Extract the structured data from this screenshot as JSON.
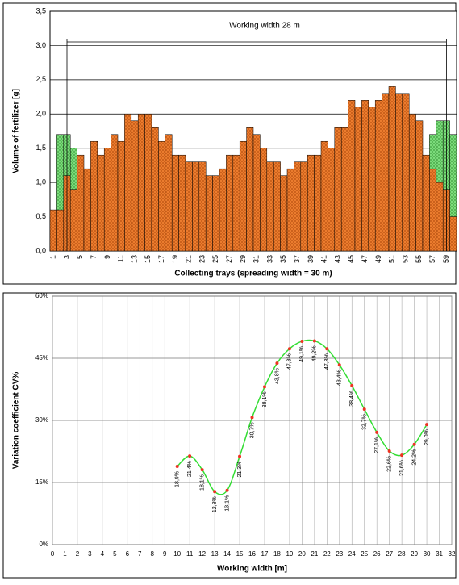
{
  "chart_data": [
    {
      "type": "bar",
      "ylabel": "Volume of fertilizer [g]",
      "xlabel": "Collecting trays (spreading width =  30 m)",
      "annotation": "Working width  28 m",
      "categories": [
        "1",
        null,
        "3",
        null,
        "5",
        null,
        "7",
        null,
        "9",
        null,
        "11",
        null,
        "13",
        null,
        "15",
        null,
        "17",
        null,
        "19",
        null,
        "21",
        null,
        "23",
        null,
        "25",
        null,
        "27",
        null,
        "29",
        null,
        "31",
        null,
        "33",
        null,
        "35",
        null,
        "37",
        null,
        "39",
        null,
        "41",
        null,
        "43",
        null,
        "45",
        null,
        "47",
        null,
        "49",
        null,
        "51",
        null,
        "53",
        null,
        "55",
        null,
        "57",
        null,
        "59",
        null
      ],
      "series": [
        {
          "color": "#80e080",
          "values": [
            null,
            1.7,
            1.7,
            1.5,
            null,
            null,
            null,
            null,
            null,
            null,
            null,
            null,
            null,
            null,
            null,
            null,
            null,
            null,
            null,
            null,
            null,
            null,
            null,
            null,
            null,
            null,
            null,
            null,
            null,
            null,
            null,
            null,
            null,
            null,
            null,
            null,
            null,
            null,
            null,
            null,
            null,
            null,
            null,
            null,
            null,
            null,
            null,
            null,
            null,
            null,
            null,
            null,
            null,
            null,
            null,
            null,
            1.7,
            1.9,
            1.9,
            1.7
          ]
        },
        {
          "color": "#f08030",
          "values": [
            0.6,
            0.6,
            1.1,
            0.9,
            1.4,
            1.2,
            1.6,
            1.4,
            1.5,
            1.7,
            1.6,
            2.0,
            1.9,
            2.0,
            2.0,
            1.8,
            1.6,
            1.7,
            1.4,
            1.4,
            1.3,
            1.3,
            1.3,
            1.1,
            1.1,
            1.2,
            1.4,
            1.4,
            1.6,
            1.8,
            1.7,
            1.5,
            1.3,
            1.3,
            1.1,
            1.2,
            1.3,
            1.3,
            1.4,
            1.4,
            1.6,
            1.5,
            1.8,
            1.8,
            2.2,
            2.1,
            2.2,
            2.1,
            2.2,
            2.3,
            2.4,
            2.3,
            2.3,
            2.0,
            1.9,
            1.4,
            1.2,
            1.0,
            0.9,
            0.5
          ]
        }
      ],
      "ylim": [
        0,
        3.5
      ],
      "yticks": [
        {
          "value": 0,
          "label": "0,0"
        },
        {
          "value": 0.5,
          "label": "0,5"
        },
        {
          "value": 1,
          "label": "1,0"
        },
        {
          "value": 1.5,
          "label": "1,5"
        },
        {
          "value": 2,
          "label": "2,0"
        },
        {
          "value": 2.5,
          "label": "2,5"
        },
        {
          "value": 3,
          "label": "3,0"
        },
        {
          "value": 3.5,
          "label": "3,5"
        }
      ],
      "grid": true
    },
    {
      "type": "line",
      "ylabel": "Variation coefficient CV%",
      "xlabel": "Working width [m]",
      "x": [
        10,
        11,
        12,
        13,
        14,
        15,
        16,
        17,
        18,
        19,
        20,
        21,
        22,
        23,
        24,
        25,
        26,
        27,
        28,
        29,
        30
      ],
      "values": [
        18.9,
        21.4,
        18.1,
        12.8,
        13.1,
        21.3,
        30.7,
        38.1,
        43.8,
        47.3,
        49.1,
        49.2,
        47.3,
        43.4,
        38.4,
        32.7,
        27.1,
        22.6,
        21.6,
        24.2,
        29.0
      ],
      "value_labels": [
        "18,9%",
        "21,4%",
        "18,1%",
        "12,8%",
        "13,1%",
        "21,3%",
        "30,7%",
        "38,1%",
        "43,8%",
        "47,3%",
        "49,1%",
        "49,2%",
        "47,3%",
        "43,4%",
        "38,4%",
        "32,7%",
        "27,1%",
        "22,6%",
        "21,6%",
        "24,2%",
        "29,0%"
      ],
      "color": "#33dd33",
      "marker_color": "#ee3322",
      "xlim": [
        0,
        32
      ],
      "xticks": [
        0,
        1,
        2,
        3,
        4,
        5,
        6,
        7,
        8,
        9,
        10,
        11,
        12,
        13,
        14,
        15,
        16,
        17,
        18,
        19,
        20,
        21,
        22,
        23,
        24,
        25,
        26,
        27,
        28,
        29,
        30,
        31,
        32
      ],
      "ylim": [
        0,
        60
      ],
      "yticks": [
        {
          "value": 0,
          "label": "0%"
        },
        {
          "value": 15,
          "label": "15%"
        },
        {
          "value": 30,
          "label": "30%"
        },
        {
          "value": 45,
          "label": "45%"
        },
        {
          "value": 60,
          "label": "60%"
        }
      ],
      "grid": true
    }
  ]
}
